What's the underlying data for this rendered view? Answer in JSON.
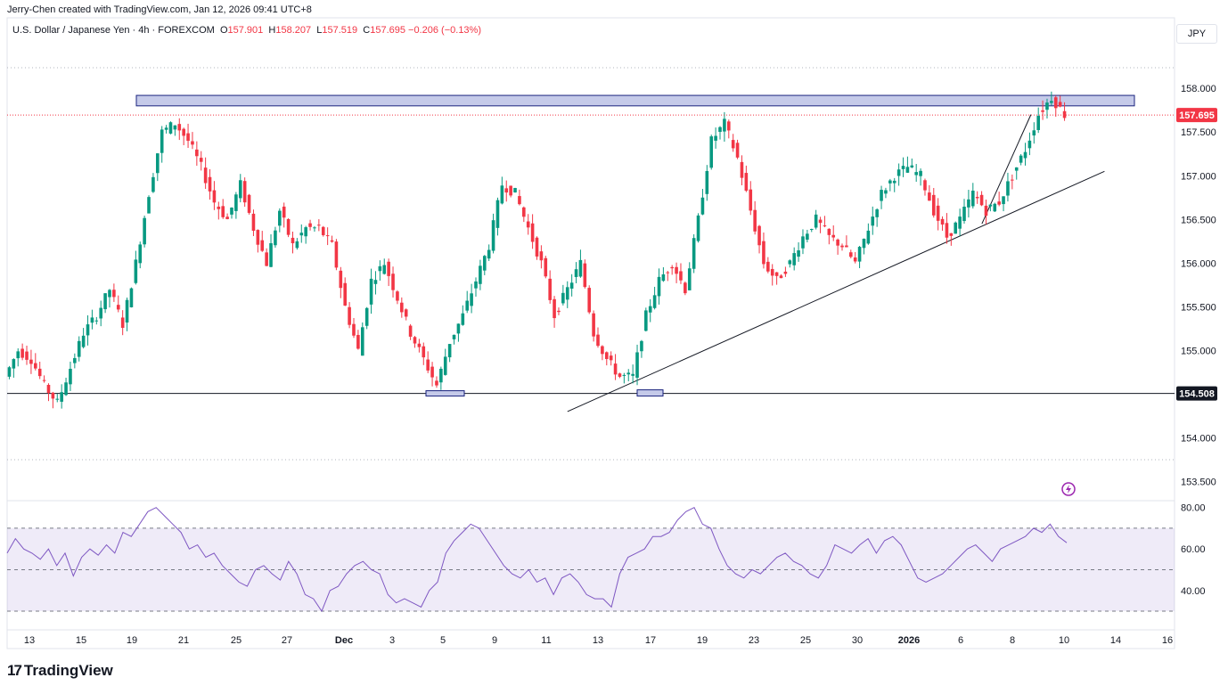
{
  "header": {
    "credit": "Jerry-Chen created with TradingView.com, Jan 12, 2026 09:41 UTC+8",
    "symbol": "U.S. Dollar / Japanese Yen · 4h · FOREXCOM",
    "ohlc": {
      "open_label": "O",
      "open": "157.901",
      "high_label": "H",
      "high": "158.207",
      "low_label": "L",
      "low": "157.519",
      "close_label": "C",
      "close": "157.695",
      "change": "−0.206 (−0.13%)"
    },
    "currency": "JPY"
  },
  "footer": {
    "brand": "TradingView"
  },
  "chart_data": [
    {
      "type": "line",
      "title": "",
      "description_note": null,
      "y_axis": {
        "range": [
          153.3,
          158.4
        ],
        "ticks": [
          "158.000",
          "157.500",
          "157.000",
          "156.500",
          "156.000",
          "155.500",
          "155.000",
          "154.000",
          "153.500"
        ],
        "tick_values": [
          158.0,
          157.5,
          157.0,
          156.5,
          156.0,
          155.5,
          155.0,
          154.0,
          153.5
        ]
      },
      "x_axis": {
        "ticks": [
          "13",
          "15",
          "19",
          "21",
          "25",
          "27",
          "Dec",
          "3",
          "5",
          "9",
          "11",
          "13",
          "17",
          "19",
          "23",
          "25",
          "30",
          "2026",
          "6",
          "8",
          "10",
          "14",
          "16"
        ]
      },
      "price_labels": [
        {
          "text": "157.695",
          "value": 157.695,
          "color": "#f23645"
        },
        {
          "text": "154.508",
          "value": 154.508,
          "color": "#131722"
        }
      ],
      "up_color": "#089981",
      "down_color": "#f23645",
      "price_path": [
        [
          0,
          154.7
        ],
        [
          1,
          155.0
        ],
        [
          2,
          154.9
        ],
        [
          3,
          154.6
        ],
        [
          4,
          154.4
        ],
        [
          5,
          154.8
        ],
        [
          6,
          155.2
        ],
        [
          7,
          155.4
        ],
        [
          8,
          155.7
        ],
        [
          9,
          155.3
        ],
        [
          10,
          156.0
        ],
        [
          11,
          156.8
        ],
        [
          12,
          157.5
        ],
        [
          13,
          157.6
        ],
        [
          14,
          157.4
        ],
        [
          15,
          157.1
        ],
        [
          16,
          156.7
        ],
        [
          17,
          156.5
        ],
        [
          18,
          156.9
        ],
        [
          19,
          156.4
        ],
        [
          20,
          156.0
        ],
        [
          21,
          156.6
        ],
        [
          22,
          156.2
        ],
        [
          23,
          156.4
        ],
        [
          24,
          156.4
        ],
        [
          25,
          156.2
        ],
        [
          26,
          155.5
        ],
        [
          27,
          155.0
        ],
        [
          28,
          155.8
        ],
        [
          29,
          156.0
        ],
        [
          30,
          155.6
        ],
        [
          31,
          155.2
        ],
        [
          32,
          154.9
        ],
        [
          33,
          154.6
        ],
        [
          34,
          155.1
        ],
        [
          35,
          155.4
        ],
        [
          36,
          155.8
        ],
        [
          37,
          156.2
        ],
        [
          38,
          156.9
        ],
        [
          39,
          156.8
        ],
        [
          40,
          156.4
        ],
        [
          41,
          156.0
        ],
        [
          42,
          155.4
        ],
        [
          43,
          155.7
        ],
        [
          44,
          156.0
        ],
        [
          45,
          155.2
        ],
        [
          46,
          154.9
        ],
        [
          47,
          154.7
        ],
        [
          48,
          154.7
        ],
        [
          49,
          155.4
        ],
        [
          50,
          155.8
        ],
        [
          51,
          156.0
        ],
        [
          52,
          155.7
        ],
        [
          53,
          156.5
        ],
        [
          54,
          157.4
        ],
        [
          55,
          157.6
        ],
        [
          56,
          157.2
        ],
        [
          57,
          156.6
        ],
        [
          58,
          156.0
        ],
        [
          59,
          155.8
        ],
        [
          60,
          156.0
        ],
        [
          61,
          156.3
        ],
        [
          62,
          156.5
        ],
        [
          63,
          156.3
        ],
        [
          64,
          156.2
        ],
        [
          65,
          156.0
        ],
        [
          66,
          156.4
        ],
        [
          67,
          156.8
        ],
        [
          68,
          157.0
        ],
        [
          69,
          157.1
        ],
        [
          70,
          157.0
        ],
        [
          71,
          156.6
        ],
        [
          72,
          156.3
        ],
        [
          73,
          156.5
        ],
        [
          74,
          156.8
        ],
        [
          75,
          156.6
        ],
        [
          76,
          156.7
        ],
        [
          77,
          157.0
        ],
        [
          78,
          157.3
        ],
        [
          79,
          157.7
        ],
        [
          80,
          157.9
        ],
        [
          81,
          157.7
        ]
      ],
      "annotations": {
        "resistance_zone": [
          157.8,
          157.92
        ],
        "support_line": 154.508,
        "trendline_1": [
          [
            154.3,
            0.48
          ],
          [
            157.05,
            0.94
          ]
        ],
        "trendline_2": [
          [
            156.45,
            0.835
          ],
          [
            157.7,
            0.877
          ]
        ]
      }
    },
    {
      "type": "line",
      "title": "",
      "y_axis": {
        "range": [
          24,
          82
        ],
        "ticks": [
          "80.00",
          "60.00",
          "40.00"
        ],
        "tick_values": [
          80,
          60,
          40
        ]
      },
      "band": {
        "upper": 70,
        "middle": 50,
        "lower": 30
      },
      "series_color": "#7e57c2",
      "band_color": "#7e57c2",
      "values": [
        58,
        65,
        60,
        58,
        55,
        60,
        52,
        58,
        47,
        56,
        60,
        57,
        62,
        58,
        68,
        66,
        72,
        78,
        80,
        76,
        72,
        68,
        60,
        62,
        56,
        58,
        52,
        48,
        44,
        42,
        50,
        52,
        48,
        45,
        54,
        48,
        38,
        36,
        30,
        40,
        42,
        48,
        52,
        54,
        50,
        48,
        38,
        34,
        36,
        34,
        32,
        40,
        44,
        58,
        64,
        68,
        72,
        70,
        64,
        58,
        52,
        48,
        46,
        50,
        44,
        46,
        38,
        46,
        48,
        44,
        38,
        36,
        36,
        32,
        48,
        56,
        58,
        60,
        66,
        66,
        68,
        74,
        78,
        80,
        72,
        70,
        60,
        52,
        48,
        46,
        50,
        48,
        52,
        56,
        58,
        54,
        52,
        48,
        46,
        52,
        62,
        60,
        58,
        62,
        65,
        58,
        64,
        66,
        62,
        54,
        46,
        44,
        46,
        48,
        52,
        56,
        60,
        62,
        58,
        54,
        60,
        62,
        64,
        66,
        70,
        68,
        72,
        66,
        63
      ]
    }
  ]
}
